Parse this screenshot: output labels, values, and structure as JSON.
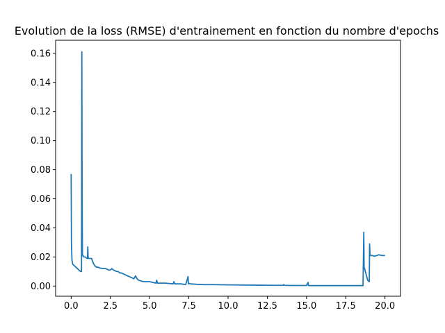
{
  "chart_data": {
    "type": "line",
    "title": "Evolution de la loss (RMSE) d'entrainement en fonction du nombre d'epochs",
    "xlabel": "",
    "ylabel": "",
    "xlim": [
      -0.99,
      20.99
    ],
    "ylim": [
      -0.007,
      0.169
    ],
    "xticks": [
      0.0,
      2.5,
      5.0,
      7.5,
      10.0,
      12.5,
      15.0,
      17.5,
      20.0
    ],
    "xtick_labels": [
      "0.0",
      "2.5",
      "5.0",
      "7.5",
      "10.0",
      "12.5",
      "15.0",
      "17.5",
      "20.0"
    ],
    "yticks": [
      0.0,
      0.02,
      0.04,
      0.06,
      0.08,
      0.1,
      0.12,
      0.14,
      0.16
    ],
    "ytick_labels": [
      "0.00",
      "0.02",
      "0.04",
      "0.06",
      "0.08",
      "0.10",
      "0.12",
      "0.14",
      "0.16"
    ],
    "grid": false,
    "series": [
      {
        "color": "#1f77b4",
        "x": [
          0.0,
          0.02,
          0.05,
          0.1,
          0.2,
          0.3,
          0.4,
          0.5,
          0.6,
          0.66,
          0.68,
          0.7,
          0.72,
          0.75,
          0.8,
          0.9,
          1.0,
          1.04,
          1.06,
          1.08,
          1.1,
          1.2,
          1.3,
          1.4,
          1.5,
          1.6,
          1.7,
          1.8,
          2.0,
          2.2,
          2.4,
          2.5,
          2.6,
          2.7,
          2.9,
          3.0,
          3.1,
          3.2,
          3.4,
          3.6,
          3.8,
          4.0,
          4.1,
          4.2,
          4.3,
          4.6,
          5.0,
          5.4,
          5.45,
          5.5,
          6.0,
          6.5,
          6.55,
          6.6,
          7.0,
          7.3,
          7.45,
          7.47,
          7.5,
          7.6,
          8.0,
          8.5,
          9.0,
          10.0,
          11.0,
          12.0,
          13.0,
          13.5,
          13.55,
          13.6,
          14.0,
          15.0,
          15.1,
          15.12,
          15.2,
          16.0,
          17.0,
          18.0,
          18.6,
          18.65,
          18.67,
          18.7,
          18.8,
          18.9,
          19.0,
          19.02,
          19.05,
          19.1,
          19.2,
          19.3,
          19.5,
          19.6,
          19.8,
          20.0
        ],
        "y": [
          0.077,
          0.03,
          0.018,
          0.015,
          0.014,
          0.013,
          0.012,
          0.011,
          0.01,
          0.01,
          0.161,
          0.06,
          0.021,
          0.021,
          0.02,
          0.02,
          0.019,
          0.019,
          0.027,
          0.02,
          0.019,
          0.019,
          0.019,
          0.016,
          0.014,
          0.013,
          0.013,
          0.0125,
          0.012,
          0.012,
          0.011,
          0.011,
          0.012,
          0.011,
          0.01,
          0.01,
          0.009,
          0.009,
          0.008,
          0.007,
          0.006,
          0.005,
          0.007,
          0.005,
          0.004,
          0.003,
          0.003,
          0.002,
          0.004,
          0.002,
          0.002,
          0.0015,
          0.003,
          0.0015,
          0.0015,
          0.001,
          0.0065,
          0.0015,
          0.002,
          0.0015,
          0.0012,
          0.001,
          0.001,
          0.0008,
          0.0007,
          0.0006,
          0.0005,
          0.0005,
          0.001,
          0.0005,
          0.0004,
          0.0004,
          0.0025,
          0.0004,
          0.0003,
          0.0003,
          0.0003,
          0.0003,
          0.0003,
          0.037,
          0.013,
          0.012,
          0.008,
          0.004,
          0.003,
          0.029,
          0.021,
          0.021,
          0.021,
          0.0205,
          0.021,
          0.0215,
          0.021,
          0.021
        ]
      }
    ]
  }
}
